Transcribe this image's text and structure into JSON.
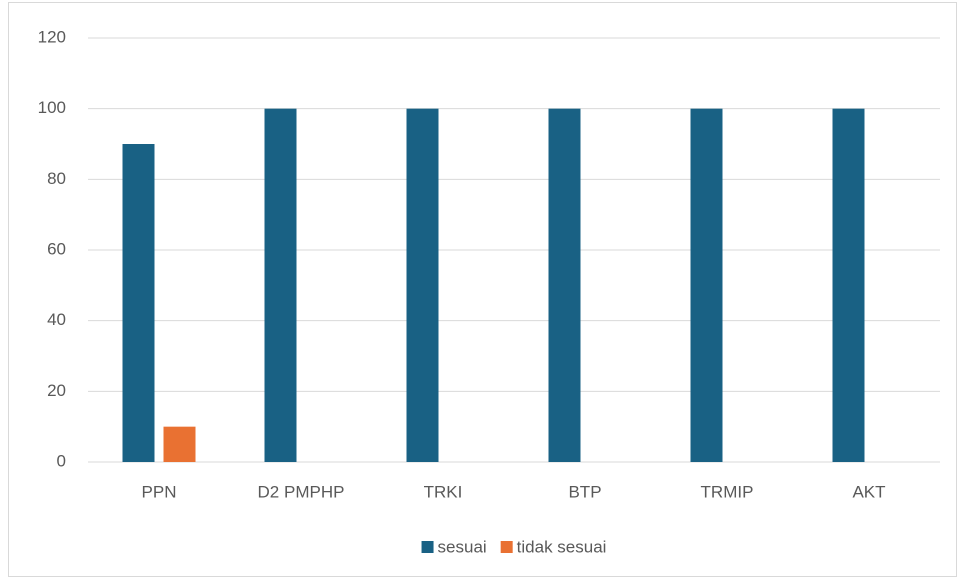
{
  "chart_data": {
    "type": "bar",
    "categories": [
      "PPN",
      "D2 PMPHP",
      "TRKI",
      "BTP",
      "TRMIP",
      "AKT"
    ],
    "series": [
      {
        "name": "sesuai",
        "color": "#196184",
        "values": [
          90,
          100,
          100,
          100,
          100,
          100
        ]
      },
      {
        "name": "tidak sesuai",
        "color": "#e97132",
        "values": [
          10,
          0,
          0,
          0,
          0,
          0
        ]
      }
    ],
    "ylim": [
      0,
      120
    ],
    "yticks": [
      0,
      20,
      40,
      60,
      80,
      100,
      120
    ],
    "grid": true,
    "legend": "bottom"
  }
}
